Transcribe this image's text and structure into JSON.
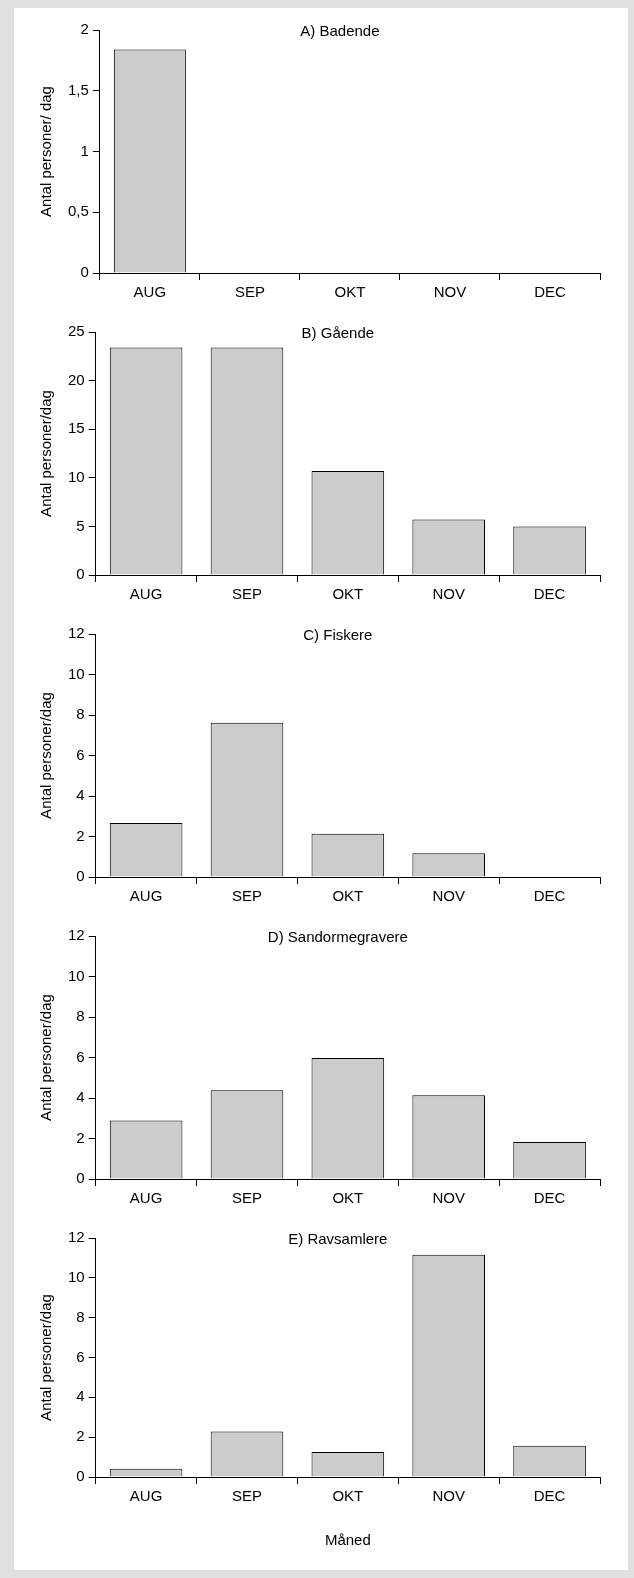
{
  "chart_data": [
    {
      "type": "bar",
      "title": "A) Badende",
      "ylabel": "Antal personer/ dag",
      "categories": [
        "AUG",
        "SEP",
        "OKT",
        "NOV",
        "DEC"
      ],
      "values": [
        1.84,
        0,
        0,
        0,
        0
      ],
      "color": "#cccccc",
      "ylim": [
        0,
        2
      ],
      "yticks": [
        0,
        {
          "value": 0.5,
          "label": "0,5"
        },
        1,
        {
          "value": 1.5,
          "label": "1,5"
        },
        2
      ]
    },
    {
      "type": "bar",
      "title": "B) Gående",
      "ylabel": "Antal personer/dag",
      "categories": [
        "AUG",
        "SEP",
        "OKT",
        "NOV",
        "DEC"
      ],
      "values": [
        23.4,
        23.4,
        10.7,
        5.7,
        5
      ],
      "color": "#cccccc",
      "ylim": [
        0,
        25
      ],
      "yticks": [
        0,
        5,
        10,
        15,
        20,
        25
      ]
    },
    {
      "type": "bar",
      "title": "C) Fiskere",
      "ylabel": "Antal personer/dag",
      "categories": [
        "AUG",
        "SEP",
        "OKT",
        "NOV",
        "DEC"
      ],
      "values": [
        2.67,
        7.62,
        2.14,
        1.17,
        0
      ],
      "color": "#cccccc",
      "ylim": [
        0,
        12
      ],
      "yticks": [
        0,
        2,
        4,
        6,
        8,
        10,
        12
      ]
    },
    {
      "type": "bar",
      "title": "D) Sandormegravere",
      "ylabel": "Antal personer/dag",
      "categories": [
        "AUG",
        "SEP",
        "OKT",
        "NOV",
        "DEC"
      ],
      "values": [
        2.89,
        4.38,
        5.98,
        4.13,
        1.83
      ],
      "color": "#cccccc",
      "ylim": [
        0,
        12
      ],
      "yticks": [
        0,
        2,
        4,
        6,
        8,
        10,
        12
      ]
    },
    {
      "type": "bar",
      "title": "E) Ravsamlere",
      "ylabel": "Antal personer/dag",
      "xlabel": "Måned",
      "categories": [
        "AUG",
        "SEP",
        "OKT",
        "NOV",
        "DEC"
      ],
      "values": [
        0.41,
        2.29,
        1.26,
        11.16,
        1.57
      ],
      "color": "#cccccc",
      "ylim": [
        0,
        12
      ],
      "yticks": [
        0,
        2,
        4,
        6,
        8,
        10,
        12
      ]
    }
  ]
}
